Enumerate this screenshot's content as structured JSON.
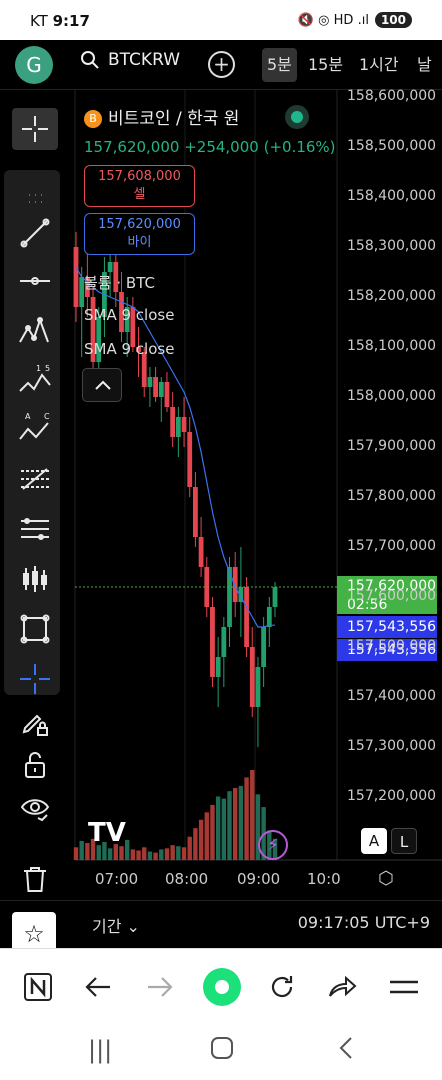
{
  "status": {
    "carrier": "KT",
    "time": "9:17",
    "icons": "🔇 ◎ HD .ıl",
    "battery": "100"
  },
  "header": {
    "avatar_letter": "G",
    "symbol": "BTCKRW",
    "add_label": "+",
    "timeframes": [
      {
        "label": "5분",
        "active": true
      },
      {
        "label": "15분",
        "active": false
      },
      {
        "label": "1시간",
        "active": false
      },
      {
        "label": "날",
        "active": false
      }
    ]
  },
  "legend": {
    "title": "비트코인 / 한국 원",
    "coin_glyph": "B",
    "last": "157,620,000",
    "change": "+254,000",
    "change_pct": "(+0.16%)",
    "sell_price": "157,608,000",
    "sell_label": "셀",
    "buy_price": "157,620,000",
    "buy_label": "바이",
    "volume": "볼륨 · BTC",
    "sma1": "SMA 9 close",
    "sma2": "SMA 9 close"
  },
  "price_tags": {
    "last_price": "157,620,000",
    "countdown": "02:56",
    "sma_a": "157,543,556",
    "sma_b": "157,543,556"
  },
  "colors": {
    "up": "#22a06b",
    "down": "#e5464f",
    "sma": "#3a73f0",
    "volume_down": "#a63a33",
    "volume_up": "#1f6b55",
    "last": "#44b244",
    "sma_tag": "#2d39e8"
  },
  "chart_data": {
    "type": "candlestick",
    "symbol": "BTCKRW",
    "interval": "5분",
    "y_axis": [
      "158,600,000",
      "158,500,000",
      "158,400,000",
      "158,300,000",
      "158,200,000",
      "158,100,000",
      "158,000,000",
      "157,900,000",
      "157,800,000",
      "157,700,000",
      "157,600,000",
      "157,500,000",
      "157,400,000",
      "157,300,000",
      "157,200,000"
    ],
    "ylim": [
      157140000,
      158620000
    ],
    "x_axis": [
      "07:00",
      "08:00",
      "09:00",
      "10:0"
    ],
    "candles": [
      {
        "o": 158300000,
        "h": 158330000,
        "l": 158150000,
        "c": 158180000,
        "v": 12
      },
      {
        "o": 158180000,
        "h": 158260000,
        "l": 158080000,
        "c": 158240000,
        "v": 18
      },
      {
        "o": 158240000,
        "h": 158290000,
        "l": 158160000,
        "c": 158200000,
        "v": 16
      },
      {
        "o": 158200000,
        "h": 158220000,
        "l": 158050000,
        "c": 158070000,
        "v": 20
      },
      {
        "o": 158070000,
        "h": 158180000,
        "l": 158040000,
        "c": 158160000,
        "v": 14
      },
      {
        "o": 158160000,
        "h": 158280000,
        "l": 158120000,
        "c": 158250000,
        "v": 17
      },
      {
        "o": 158250000,
        "h": 158300000,
        "l": 158200000,
        "c": 158270000,
        "v": 11
      },
      {
        "o": 158270000,
        "h": 158320000,
        "l": 158180000,
        "c": 158210000,
        "v": 15
      },
      {
        "o": 158210000,
        "h": 158250000,
        "l": 158110000,
        "c": 158130000,
        "v": 13
      },
      {
        "o": 158130000,
        "h": 158200000,
        "l": 158080000,
        "c": 158180000,
        "v": 19
      },
      {
        "o": 158180000,
        "h": 158200000,
        "l": 158090000,
        "c": 158100000,
        "v": 10
      },
      {
        "o": 158100000,
        "h": 158140000,
        "l": 158040000,
        "c": 158090000,
        "v": 9
      },
      {
        "o": 158090000,
        "h": 158100000,
        "l": 158000000,
        "c": 158020000,
        "v": 12
      },
      {
        "o": 158020000,
        "h": 158060000,
        "l": 157980000,
        "c": 158040000,
        "v": 8
      },
      {
        "o": 158040000,
        "h": 158060000,
        "l": 157990000,
        "c": 158000000,
        "v": 7
      },
      {
        "o": 158000000,
        "h": 158040000,
        "l": 157950000,
        "c": 158030000,
        "v": 10
      },
      {
        "o": 158030000,
        "h": 158050000,
        "l": 157970000,
        "c": 157980000,
        "v": 11
      },
      {
        "o": 157980000,
        "h": 158010000,
        "l": 157900000,
        "c": 157920000,
        "v": 14
      },
      {
        "o": 157920000,
        "h": 157980000,
        "l": 157880000,
        "c": 157960000,
        "v": 13
      },
      {
        "o": 157960000,
        "h": 158000000,
        "l": 157900000,
        "c": 157930000,
        "v": 12
      },
      {
        "o": 157930000,
        "h": 157960000,
        "l": 157800000,
        "c": 157820000,
        "v": 22
      },
      {
        "o": 157820000,
        "h": 157850000,
        "l": 157700000,
        "c": 157720000,
        "v": 30
      },
      {
        "o": 157720000,
        "h": 157760000,
        "l": 157640000,
        "c": 157660000,
        "v": 38
      },
      {
        "o": 157660000,
        "h": 157680000,
        "l": 157560000,
        "c": 157580000,
        "v": 45
      },
      {
        "o": 157580000,
        "h": 157600000,
        "l": 157420000,
        "c": 157440000,
        "v": 52
      },
      {
        "o": 157440000,
        "h": 157520000,
        "l": 157380000,
        "c": 157480000,
        "v": 60
      },
      {
        "o": 157480000,
        "h": 157560000,
        "l": 157420000,
        "c": 157540000,
        "v": 58
      },
      {
        "o": 157540000,
        "h": 157680000,
        "l": 157500000,
        "c": 157660000,
        "v": 65
      },
      {
        "o": 157660000,
        "h": 157690000,
        "l": 157560000,
        "c": 157590000,
        "v": 68
      },
      {
        "o": 157590000,
        "h": 157700000,
        "l": 157520000,
        "c": 157620000,
        "v": 70
      },
      {
        "o": 157620000,
        "h": 157640000,
        "l": 157480000,
        "c": 157500000,
        "v": 78
      },
      {
        "o": 157500000,
        "h": 157540000,
        "l": 157360000,
        "c": 157380000,
        "v": 85
      },
      {
        "o": 157380000,
        "h": 157480000,
        "l": 157300000,
        "c": 157460000,
        "v": 62
      },
      {
        "o": 157460000,
        "h": 157560000,
        "l": 157420000,
        "c": 157540000,
        "v": 50
      },
      {
        "o": 157540000,
        "h": 157600000,
        "l": 157500000,
        "c": 157580000,
        "v": 28
      },
      {
        "o": 157580000,
        "h": 157630000,
        "l": 157560000,
        "c": 157620000,
        "v": 20
      }
    ],
    "sma": [
      158260000,
      158240000,
      158230000,
      158220000,
      158210000,
      158205000,
      158200000,
      158195000,
      158190000,
      158185000,
      158180000,
      158170000,
      158150000,
      158130000,
      158110000,
      158090000,
      158070000,
      158050000,
      158030000,
      158010000,
      157980000,
      157940000,
      157890000,
      157830000,
      157770000,
      157720000,
      157680000,
      157650000,
      157620000,
      157600000,
      157580000,
      157560000,
      157540000,
      157540000,
      157543556,
      157543556
    ],
    "last_price": 157620000
  }
}
